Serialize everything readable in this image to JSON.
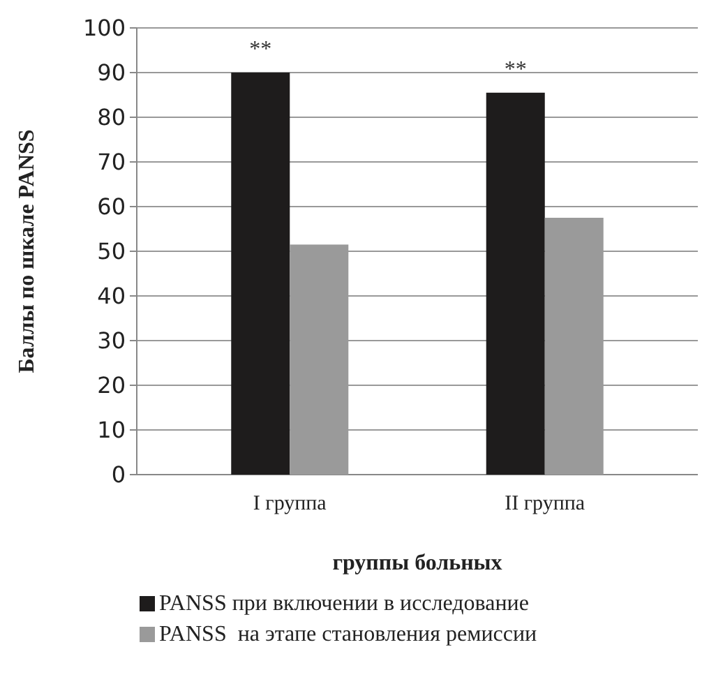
{
  "chart_data": {
    "type": "bar",
    "xlabel": "группы больных",
    "ylabel": "Баллы по шкале PANSS",
    "categories": [
      "I группа",
      "II группа"
    ],
    "series": [
      {
        "name": "PANSS при включении в исследование",
        "color": "#1e1c1c",
        "values": [
          90,
          85.5
        ]
      },
      {
        "name": "PANSS  на этапе становления ремиссии",
        "color": "#9a9a9a",
        "values": [
          51.5,
          57.5
        ]
      }
    ],
    "ylim": [
      0,
      100
    ],
    "yticks": [
      0,
      10,
      20,
      30,
      40,
      50,
      60,
      70,
      80,
      90,
      100
    ],
    "grid": "y",
    "legend": "bottom",
    "annotations": [
      "**",
      "**"
    ]
  }
}
